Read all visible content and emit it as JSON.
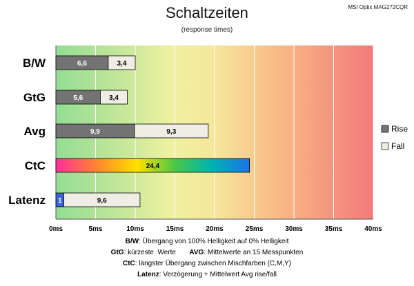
{
  "header": {
    "title": "Schaltzeiten",
    "subtitle": "(response times)",
    "model": "MSI Optix MAG272CQR"
  },
  "chart_data": {
    "type": "bar",
    "stacked": true,
    "orientation": "horizontal",
    "categories": [
      "B/W",
      "GtG",
      "Avg",
      "CtC",
      "Latenz"
    ],
    "x_ticks": [
      "0ms",
      "5ms",
      "10ms",
      "15ms",
      "20ms",
      "25ms",
      "30ms",
      "35ms",
      "40ms"
    ],
    "xlim": [
      0,
      40
    ],
    "background": "green-yellow-red gradient from 0 to 40 ms",
    "series": [
      {
        "name": "Rise",
        "color": "#737373",
        "values": [
          6.6,
          5.6,
          9.9,
          null,
          1
        ],
        "labels": [
          "6,6",
          "5,6",
          "9,9",
          "",
          "1"
        ]
      },
      {
        "name": "Fall",
        "color": "#efede4",
        "values": [
          3.4,
          3.4,
          9.3,
          null,
          9.6
        ],
        "labels": [
          "3,4",
          "3,4",
          "9,3",
          "",
          "9,6"
        ]
      },
      {
        "name": "",
        "color": "rainbow",
        "values": [
          null,
          null,
          null,
          24.4,
          null
        ],
        "labels": [
          "",
          "",
          "",
          "24,4",
          ""
        ]
      }
    ],
    "latency_first_segment_color": "#3a64d8",
    "legend": {
      "position": "right",
      "entries": [
        "Rise",
        "Fall"
      ]
    }
  },
  "notes": [
    {
      "label": "B/W",
      "text": ":  Übergang von 100% Helligkeit auf 0% Helligkeit"
    },
    {
      "label": "GtG",
      "text": ": kürzeste  Werte       ",
      "label2": "AVG",
      "text2": ": Mittelwerte  an 15 Messpunkten"
    },
    {
      "label": "CtC",
      "text": ": längster Übergang  zwischen Mischfarben (C,M,Y)"
    },
    {
      "label": "Latenz",
      "text": ": Verzögerung  + Mittelwert Avg rise/fall"
    }
  ]
}
